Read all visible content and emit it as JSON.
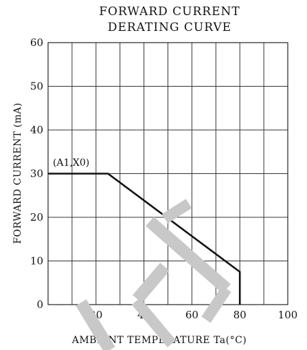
{
  "chart_data": {
    "type": "line",
    "title_lines": [
      "FORWARD CURRENT",
      "DERATING CURVE"
    ],
    "xlabel": "AMBIENT TEMPERATURE Ta(°C)",
    "ylabel": "FORWARD CURRENT (mA)",
    "xlim": [
      0,
      100
    ],
    "ylim": [
      0,
      60
    ],
    "grid": true,
    "x_grid_values": [
      10,
      20,
      30,
      40,
      50,
      60,
      70,
      80,
      90
    ],
    "y_grid_values": [
      10,
      20,
      30,
      40,
      50
    ],
    "x_ticks": [
      {
        "value": 20,
        "label": "20"
      },
      {
        "value": 40,
        "label": "40"
      },
      {
        "value": 60,
        "label": "60"
      },
      {
        "value": 80,
        "label": "80"
      },
      {
        "value": 100,
        "label": "100"
      }
    ],
    "y_ticks": [
      {
        "value": 0,
        "label": "0"
      },
      {
        "value": 10,
        "label": "10"
      },
      {
        "value": 20,
        "label": "20"
      },
      {
        "value": 30,
        "label": "30"
      },
      {
        "value": 40,
        "label": "40"
      },
      {
        "value": 50,
        "label": "50"
      },
      {
        "value": 60,
        "label": "60"
      }
    ],
    "series": [
      {
        "color": "#111111",
        "points": [
          {
            "x": 0,
            "y": 30
          },
          {
            "x": 25,
            "y": 30
          },
          {
            "x": 80,
            "y": 7.5
          },
          {
            "x": 80,
            "y": 0
          }
        ]
      }
    ],
    "annotations": [
      {
        "text": "(A1,X0)",
        "x": 2,
        "y": 31.5
      }
    ]
  },
  "watermark": {
    "color": "#c8c8c8"
  }
}
